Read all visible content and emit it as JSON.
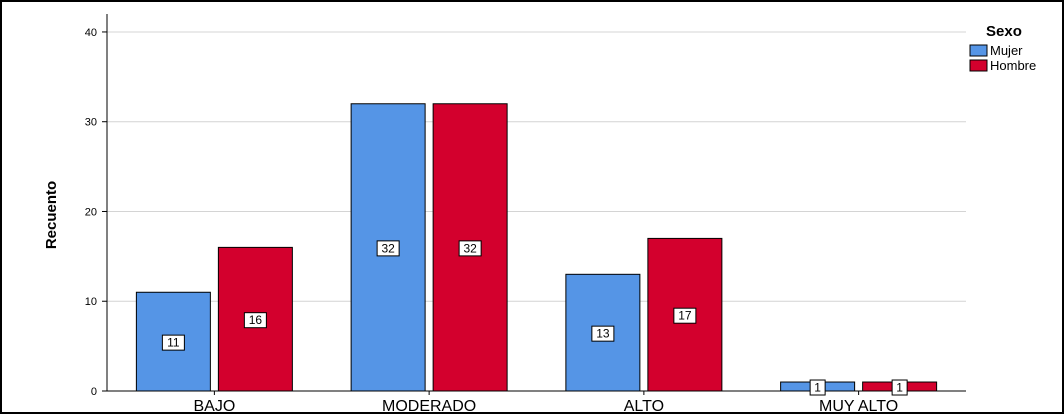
{
  "chart_data": {
    "type": "bar",
    "title": "",
    "xlabel": "",
    "ylabel": "Recuento",
    "categories": [
      "BAJO",
      "MODERADO",
      "ALTO",
      "MUY ALTO"
    ],
    "series": [
      {
        "name": "Mujer",
        "values": [
          11,
          32,
          13,
          1
        ],
        "color": "#5595e6"
      },
      {
        "name": "Hombre",
        "values": [
          16,
          32,
          17,
          1
        ],
        "color": "#d3002d"
      }
    ],
    "ylim": [
      0,
      42
    ],
    "yticks": [
      0,
      10,
      20,
      30,
      40
    ],
    "grid": true,
    "legend": {
      "title": "Sexo",
      "placement": "top-right"
    },
    "data_labels": true
  }
}
